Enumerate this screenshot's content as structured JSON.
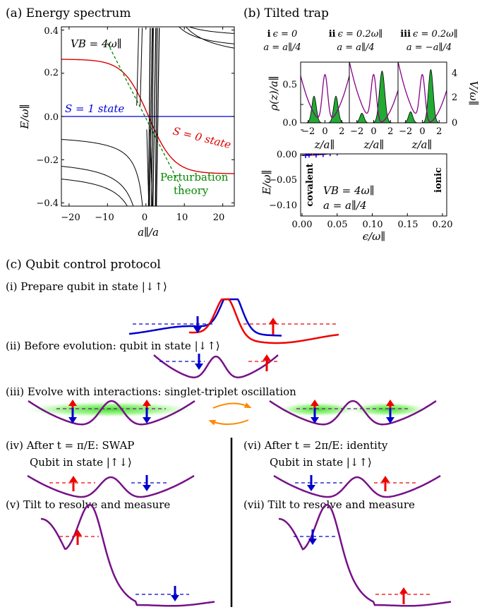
{
  "panel_a": {
    "title": "(a) Energy spectrum",
    "ylabel": "E/ω∥",
    "xlabel": "a∥/a",
    "yticks": [
      "0.4",
      "0.2",
      "0.0",
      "−0.2",
      "−0.4"
    ],
    "xticks": [
      "−20",
      "−10",
      "0",
      "10",
      "20"
    ],
    "vb_label": "VB = 4ω∥",
    "s1_label": "S = 1 state",
    "s0_label": "S = 0 state",
    "pt_label_1": "Perturbation",
    "pt_label_2": "theory",
    "colors": {
      "s1": "#0000dd",
      "s0": "#dd0000",
      "pt": "#008800"
    }
  },
  "panel_b": {
    "title": "(b) Tilted trap",
    "cases": [
      {
        "num": "i",
        "eps": "ϵ = 0",
        "a": "a = a∥/4"
      },
      {
        "num": "ii",
        "eps": "ϵ = 0.2ω∥",
        "a": "a = a∥/4"
      },
      {
        "num": "iii",
        "eps": "ϵ = 0.2ω∥",
        "a": "a = −a∥/4"
      }
    ],
    "top_ylabel": "ρ(z)/a∥",
    "top_y2label": "V/ω∥",
    "top_yticks": [
      "0.5",
      "0.0"
    ],
    "top_y2ticks": [
      "4",
      "2",
      "0"
    ],
    "top_xticks": [
      "−2",
      "0",
      "2"
    ],
    "top_xlabel": "z/a∥",
    "bot_ylabel": "E/ω∥",
    "bot_xlabel": "ϵ/ω∥",
    "bot_yticks": [
      "0.00",
      "−0.05",
      "−0.10"
    ],
    "bot_xticks": [
      "0.00",
      "0.05",
      "0.10",
      "0.15",
      "0.20"
    ],
    "covalent": "covalent",
    "ionic": "ionic",
    "vb_label": "VB = 4ω∥",
    "a_label": "a = a∥/4",
    "colors": {
      "fill": "#22aa33",
      "potential": "#880088",
      "curve": "#ee1111",
      "marks": "#0000cc"
    }
  },
  "panel_c": {
    "title": "(c) Qubit control protocol",
    "steps": {
      "i": "(i) Prepare qubit in state |↓↑⟩",
      "ii": "(ii) Before evolution: qubit in state |↓↑⟩",
      "iii": "(iii) Evolve with interactions: singlet-triplet oscillation",
      "iv_1": "(iv) After t = π/E: SWAP",
      "iv_2": "Qubit in state |↑↓⟩",
      "v": "(v) Tilt to resolve and measure",
      "vi_1": "(vi) After t = 2π/E: identity",
      "vi_2": "Qubit in state |↓↑⟩",
      "vii": "(vii) Tilt to resolve and measure"
    },
    "colors": {
      "well": "#771188",
      "up": "#ee0000",
      "down": "#0000cc",
      "cloud": "#44dd33",
      "arrow": "#ff8800"
    }
  }
}
